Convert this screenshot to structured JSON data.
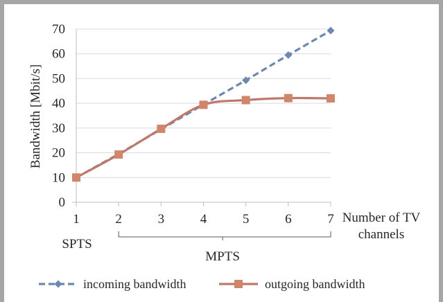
{
  "chart_data": {
    "type": "line",
    "ylabel": "Bandwidth [Mbit/s]",
    "xlabel": [
      "Number of TV",
      "channels"
    ],
    "ylim": [
      0,
      70
    ],
    "yticks": [
      0,
      10,
      20,
      30,
      40,
      50,
      60,
      70
    ],
    "x": [
      1,
      2,
      3,
      4,
      5,
      6,
      7
    ],
    "grid": "horizontal",
    "legend_position": "bottom",
    "groups": [
      {
        "label": "SPTS",
        "from": 1,
        "to": 1
      },
      {
        "label": "MPTS",
        "from": 2,
        "to": 7
      }
    ],
    "series": [
      {
        "name": "incoming bandwidth",
        "color": "#6e86b2",
        "style": "dashed",
        "marker": "diamond",
        "values": [
          10,
          19.5,
          29.5,
          39.5,
          49.3,
          59.5,
          69.4
        ]
      },
      {
        "name": "outgoing bandwidth",
        "color": "#c0786a",
        "marker_color": "#d0866a",
        "style": "solid-smooth",
        "marker": "square",
        "values": [
          10,
          19.3,
          29.7,
          39.4,
          41.3,
          42.1,
          42
        ]
      }
    ]
  }
}
